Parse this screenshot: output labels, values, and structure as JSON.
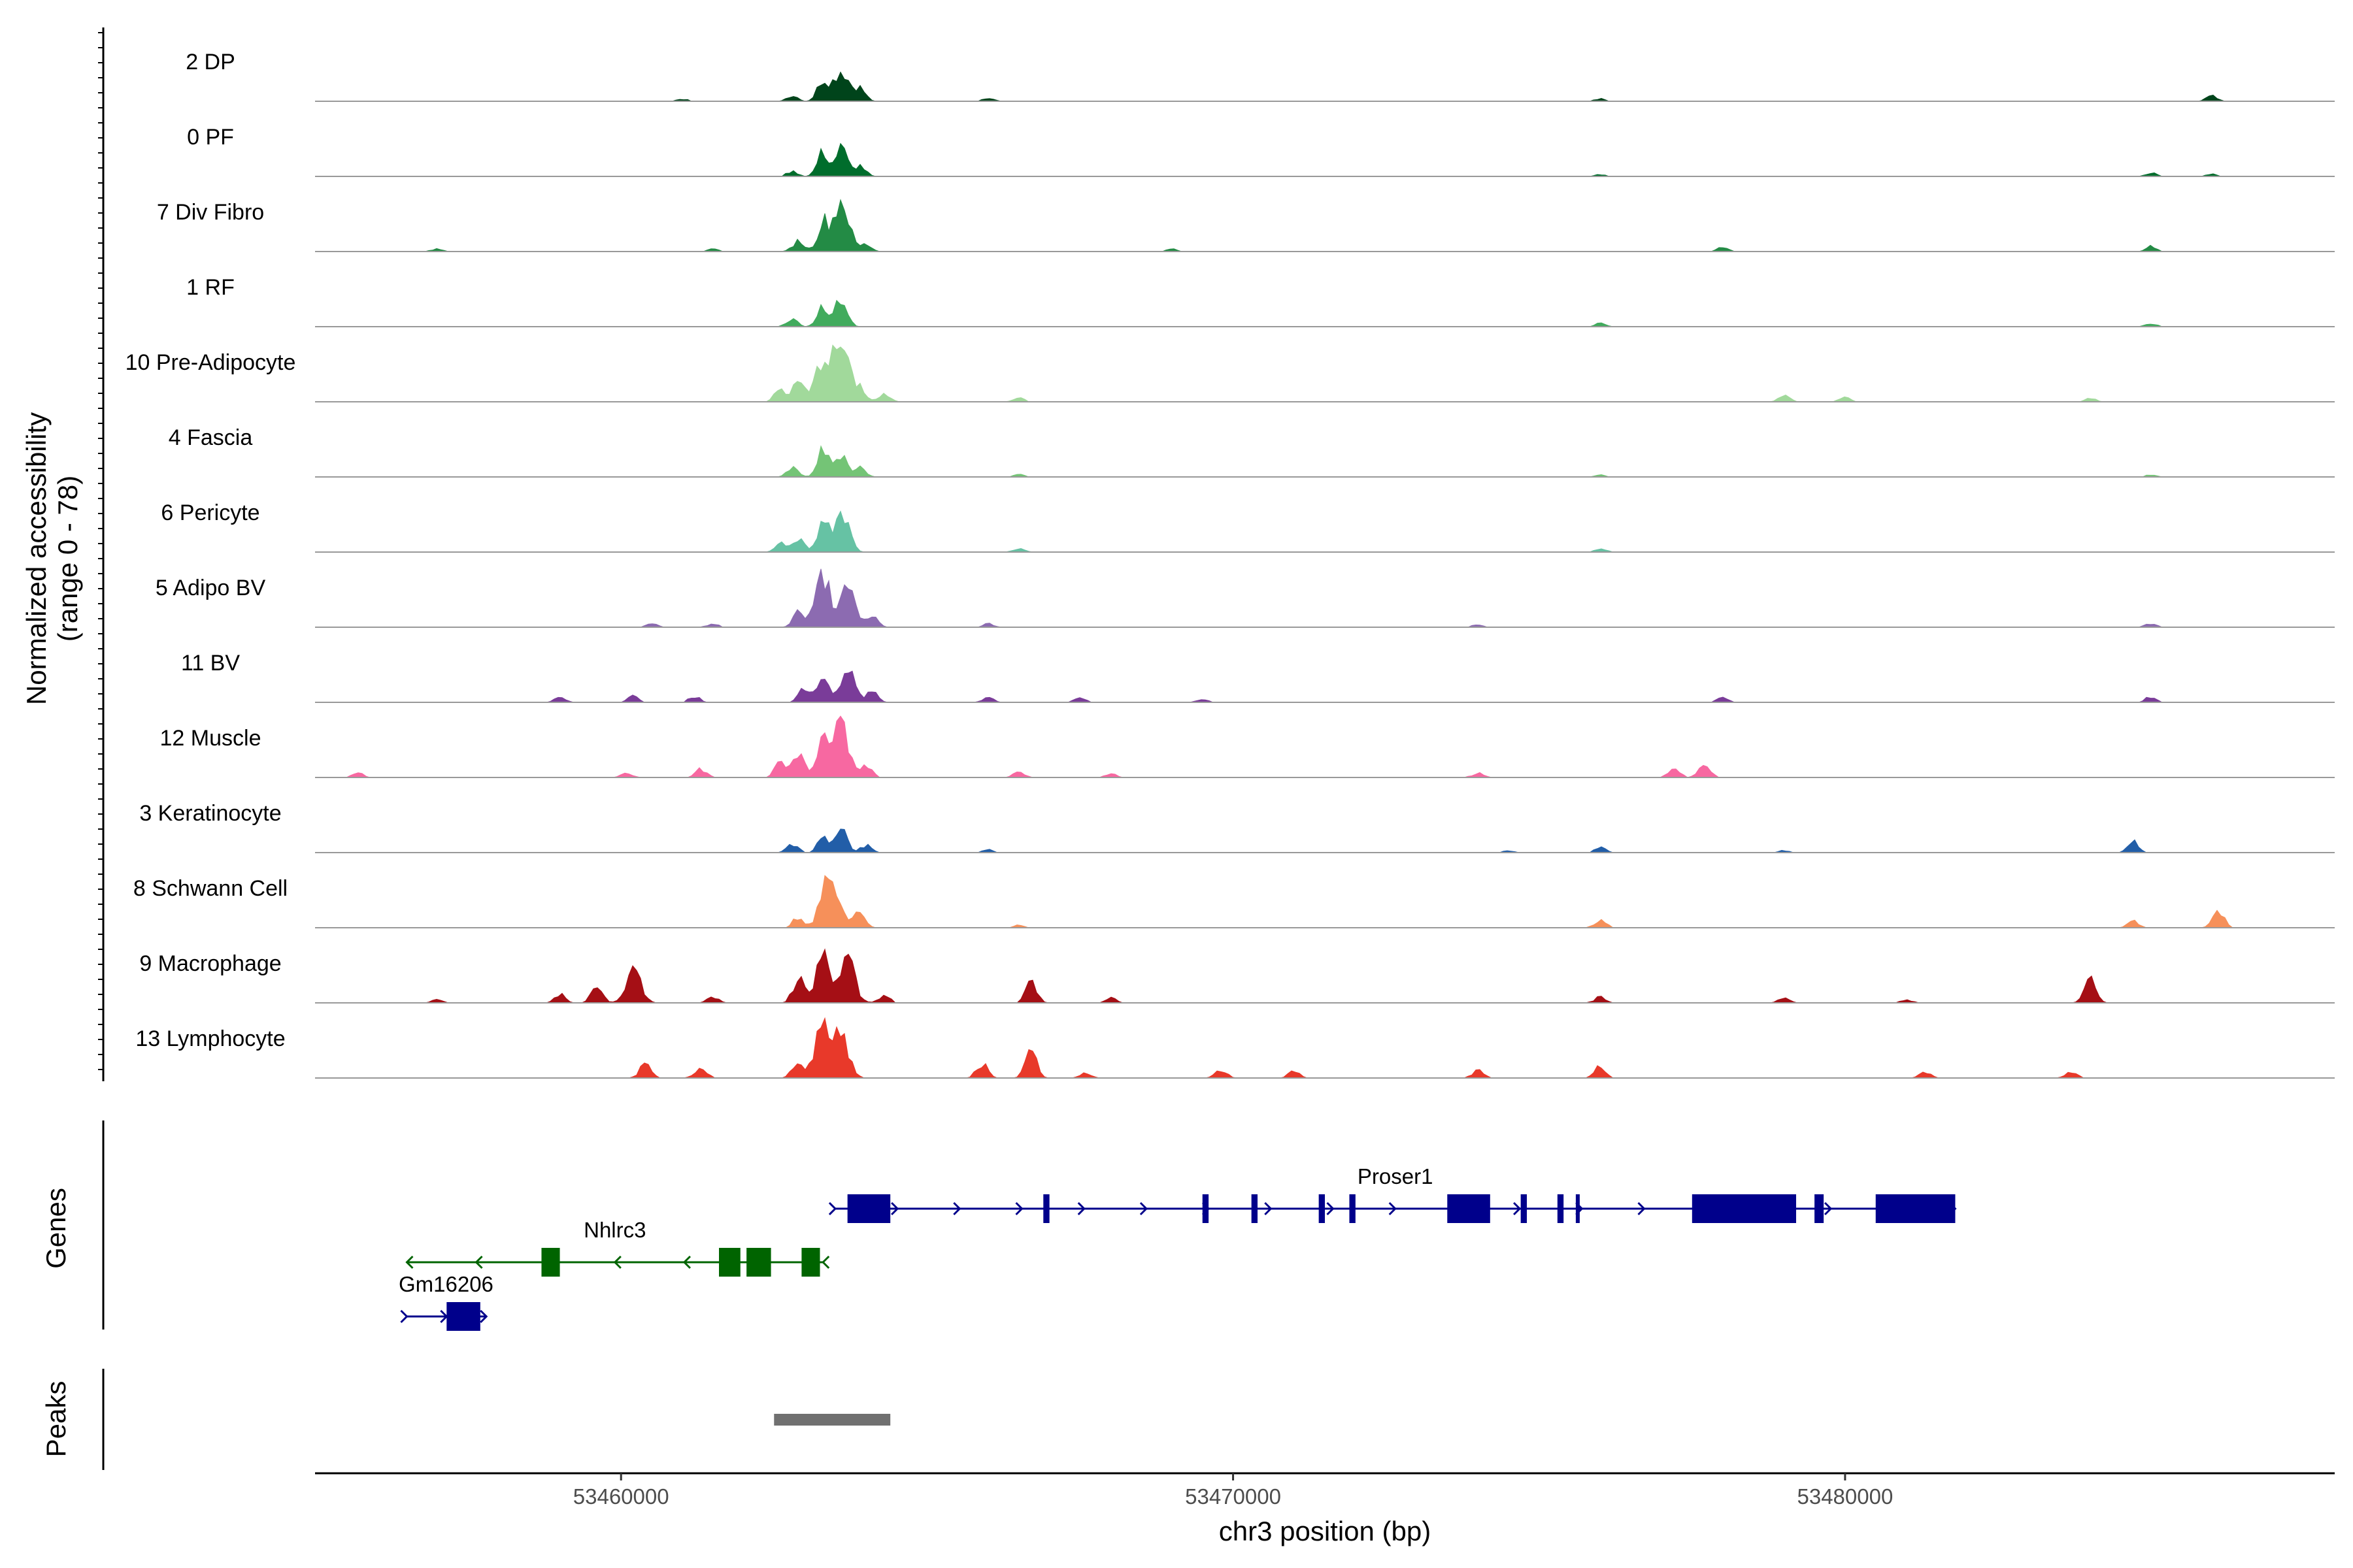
{
  "chart_data": {
    "type": "area",
    "title": "",
    "chromosome": "chr3",
    "xlabel": "chr3 position (bp)",
    "ylabel_line1": "Normalized accessibility",
    "ylabel_line2": "(range 0 - 78)",
    "y_range": [
      0,
      78
    ],
    "xlim": [
      53455000,
      53488000
    ],
    "x_ticks": [
      {
        "value": 53460000,
        "label": "53460000"
      },
      {
        "value": 53470000,
        "label": "53470000"
      },
      {
        "value": 53480000,
        "label": "53480000"
      }
    ],
    "tracks": [
      {
        "name": "2 DP",
        "color": "#00441b",
        "peaks": [
          [
            53463300,
            30
          ],
          [
            53463600,
            44
          ],
          [
            53463900,
            18
          ],
          [
            53462800,
            8
          ],
          [
            53466000,
            4
          ],
          [
            53486000,
            8
          ],
          [
            53476000,
            4
          ],
          [
            53461000,
            3
          ]
        ]
      },
      {
        "name": "0 PF",
        "color": "#006d2c",
        "peaks": [
          [
            53463300,
            34
          ],
          [
            53463600,
            40
          ],
          [
            53463900,
            15
          ],
          [
            53462800,
            7
          ],
          [
            53476000,
            3
          ],
          [
            53485000,
            5
          ],
          [
            53486000,
            3
          ]
        ]
      },
      {
        "name": "7 Div Fibro",
        "color": "#238b45",
        "peaks": [
          [
            53463600,
            74
          ],
          [
            53463300,
            40
          ],
          [
            53462900,
            15
          ],
          [
            53464000,
            10
          ],
          [
            53457000,
            4
          ],
          [
            53461500,
            5
          ],
          [
            53478000,
            6
          ],
          [
            53485000,
            7
          ],
          [
            53469000,
            4
          ]
        ]
      },
      {
        "name": "1 RF",
        "color": "#41ab5d",
        "peaks": [
          [
            53463600,
            40
          ],
          [
            53463300,
            30
          ],
          [
            53462800,
            12
          ],
          [
            53476000,
            5
          ],
          [
            53485000,
            4
          ]
        ]
      },
      {
        "name": "10 Pre-Adipocyte",
        "color": "#a1d99b",
        "peaks": [
          [
            53463600,
            78
          ],
          [
            53463300,
            60
          ],
          [
            53462900,
            28
          ],
          [
            53462600,
            18
          ],
          [
            53463900,
            20
          ],
          [
            53464300,
            10
          ],
          [
            53479000,
            9
          ],
          [
            53480000,
            6
          ],
          [
            53466500,
            5
          ],
          [
            53484000,
            5
          ]
        ]
      },
      {
        "name": "4 Fascia",
        "color": "#74c476",
        "peaks": [
          [
            53463300,
            38
          ],
          [
            53463600,
            34
          ],
          [
            53462800,
            12
          ],
          [
            53463900,
            14
          ],
          [
            53466500,
            4
          ],
          [
            53476000,
            3
          ],
          [
            53485000,
            3
          ]
        ]
      },
      {
        "name": "6 Pericyte",
        "color": "#66c2a4",
        "peaks": [
          [
            53463600,
            56
          ],
          [
            53463300,
            36
          ],
          [
            53462900,
            20
          ],
          [
            53462600,
            12
          ],
          [
            53466500,
            5
          ],
          [
            53476000,
            5
          ]
        ]
      },
      {
        "name": "5 Adipo BV",
        "color": "#8c6bb1",
        "peaks": [
          [
            53463300,
            72
          ],
          [
            53463700,
            52
          ],
          [
            53462900,
            22
          ],
          [
            53464100,
            16
          ],
          [
            53460500,
            6
          ],
          [
            53461500,
            5
          ],
          [
            53466000,
            5
          ],
          [
            53474000,
            4
          ],
          [
            53485000,
            5
          ]
        ]
      },
      {
        "name": "11 BV",
        "color": "#7a3c99",
        "peaks": [
          [
            53463300,
            40
          ],
          [
            53463700,
            44
          ],
          [
            53463000,
            22
          ],
          [
            53464100,
            15
          ],
          [
            53459000,
            8
          ],
          [
            53460200,
            9
          ],
          [
            53461200,
            8
          ],
          [
            53466000,
            7
          ],
          [
            53467500,
            6
          ],
          [
            53478000,
            6
          ],
          [
            53485000,
            8
          ],
          [
            53469500,
            5
          ]
        ]
      },
      {
        "name": "12 Muscle",
        "color": "#f768a1",
        "peaks": [
          [
            53463600,
            78
          ],
          [
            53463300,
            48
          ],
          [
            53462900,
            30
          ],
          [
            53462600,
            20
          ],
          [
            53464000,
            18
          ],
          [
            53461300,
            12
          ],
          [
            53460100,
            6
          ],
          [
            53455700,
            7
          ],
          [
            53477700,
            22
          ],
          [
            53477200,
            14
          ],
          [
            53466500,
            7
          ],
          [
            53468000,
            6
          ],
          [
            53474000,
            6
          ]
        ]
      },
      {
        "name": "3 Keratinocyte",
        "color": "#225ea8",
        "peaks": [
          [
            53463600,
            30
          ],
          [
            53463300,
            24
          ],
          [
            53462800,
            12
          ],
          [
            53464000,
            10
          ],
          [
            53484700,
            16
          ],
          [
            53476000,
            7
          ],
          [
            53466000,
            4
          ],
          [
            53474500,
            3
          ],
          [
            53479000,
            3
          ]
        ]
      },
      {
        "name": "8 Schwann Cell",
        "color": "#f6905a",
        "peaks": [
          [
            53463500,
            58
          ],
          [
            53463300,
            40
          ],
          [
            53463900,
            26
          ],
          [
            53462900,
            15
          ],
          [
            53486100,
            22
          ],
          [
            53476000,
            11
          ],
          [
            53484700,
            9
          ],
          [
            53466500,
            4
          ]
        ]
      },
      {
        "name": "9 Macrophage",
        "color": "#a50f15",
        "peaks": [
          [
            53463300,
            68
          ],
          [
            53463700,
            58
          ],
          [
            53462900,
            34
          ],
          [
            53460200,
            46
          ],
          [
            53459600,
            24
          ],
          [
            53459000,
            12
          ],
          [
            53461500,
            8
          ],
          [
            53466700,
            28
          ],
          [
            53484000,
            36
          ],
          [
            53464300,
            10
          ],
          [
            53468000,
            7
          ],
          [
            53476000,
            8
          ],
          [
            53479000,
            6
          ],
          [
            53481000,
            5
          ],
          [
            53457000,
            5
          ]
        ]
      },
      {
        "name": "13 Lymphocyte",
        "color": "#e8392a",
        "peaks": [
          [
            53463300,
            76
          ],
          [
            53463600,
            60
          ],
          [
            53462900,
            26
          ],
          [
            53460400,
            20
          ],
          [
            53461300,
            16
          ],
          [
            53465900,
            20
          ],
          [
            53466700,
            36
          ],
          [
            53476000,
            18
          ],
          [
            53469800,
            12
          ],
          [
            53471000,
            10
          ],
          [
            53474000,
            10
          ],
          [
            53481300,
            8
          ],
          [
            53483700,
            8
          ],
          [
            53467600,
            7
          ]
        ]
      }
    ],
    "genes_panel_label": "Genes",
    "genes": [
      {
        "name": "Proser1",
        "strand": "+",
        "color": "#00008b",
        "start": 53463500,
        "end": 53481800,
        "row": 0,
        "exons": [
          [
            53463700,
            53464400
          ],
          [
            53466900,
            53467000
          ],
          [
            53469500,
            53469600
          ],
          [
            53470300,
            53470400
          ],
          [
            53471400,
            53471500
          ],
          [
            53471900,
            53472000
          ],
          [
            53473500,
            53474200
          ],
          [
            53474700,
            53474800
          ],
          [
            53475300,
            53475400
          ],
          [
            53475600,
            53475650
          ],
          [
            53477500,
            53479200
          ],
          [
            53479500,
            53479650
          ],
          [
            53480500,
            53481800
          ]
        ]
      },
      {
        "name": "Nhlrc3",
        "strand": "-",
        "color": "#006400",
        "start": 53456500,
        "end": 53463300,
        "row": 1,
        "exons": [
          [
            53458700,
            53459000
          ],
          [
            53461600,
            53461950
          ],
          [
            53462050,
            53462450
          ],
          [
            53462950,
            53463250
          ]
        ]
      },
      {
        "name": "Gm16206",
        "strand": "+",
        "color": "#00008b",
        "start": 53456500,
        "end": 53457800,
        "row": 2,
        "exons": [
          [
            53457150,
            53457700
          ]
        ]
      }
    ],
    "peaks_panel_label": "Peaks",
    "peak_regions": [
      [
        53462500,
        53464400
      ]
    ]
  }
}
